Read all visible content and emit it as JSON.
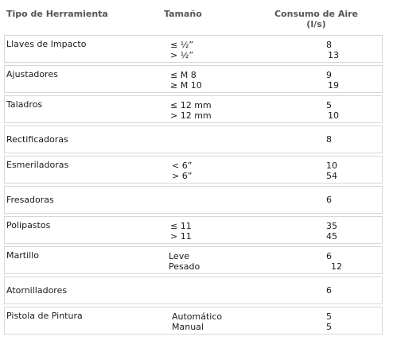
{
  "headers": {
    "tool": "Tipo de Herramienta",
    "size": "Tamaño",
    "air_line1": "Consumo de Aire",
    "air_line2": "(l/s)"
  },
  "rows": [
    {
      "tool": "Llaves de Impacto",
      "sizes": [
        "≤ ½”",
        "> ½”"
      ],
      "values": [
        "8",
        "13"
      ]
    },
    {
      "tool": "Ajustadores",
      "sizes": [
        "≤ M 8",
        "≥ M 10"
      ],
      "values": [
        "9",
        "19"
      ]
    },
    {
      "tool": "Taladros",
      "sizes": [
        "≤ 12 mm",
        "> 12 mm"
      ],
      "values": [
        "5",
        "10"
      ]
    },
    {
      "tool": "Rectificadoras",
      "sizes": [],
      "values": [
        "8"
      ]
    },
    {
      "tool": "Esmeriladoras",
      "sizes": [
        "< 6”",
        "> 6”"
      ],
      "values": [
        "10",
        "54"
      ]
    },
    {
      "tool": "Fresadoras",
      "sizes": [],
      "values": [
        "6"
      ]
    },
    {
      "tool": "Polipastos",
      "sizes": [
        "≤ 11",
        "> 11"
      ],
      "values": [
        "35",
        "45"
      ]
    },
    {
      "tool": "Martillo",
      "sizes": [
        "Leve",
        "Pesado"
      ],
      "values": [
        "6",
        "12"
      ]
    },
    {
      "tool": "Atornilladores",
      "sizes": [],
      "values": [
        "6"
      ]
    },
    {
      "tool": "Pistola de Pintura",
      "sizes": [
        "Automático",
        "Manual"
      ],
      "values": [
        "5",
        "5"
      ]
    }
  ]
}
